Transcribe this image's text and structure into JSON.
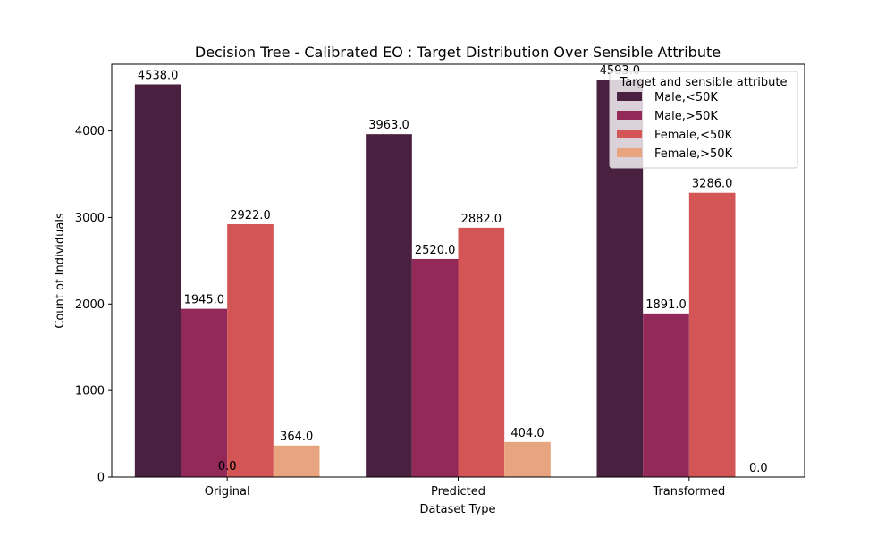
{
  "chart_data": {
    "type": "bar",
    "title": "Decision Tree - Calibrated EO : Target Distribution Over Sensible Attribute",
    "xlabel": "Dataset Type",
    "ylabel": "Count of Individuals",
    "categories": [
      "Original",
      "Predicted",
      "Transformed"
    ],
    "ylim": [
      0,
      4770
    ],
    "yticks": [
      0,
      1000,
      2000,
      3000,
      4000
    ],
    "grid": false,
    "legend": {
      "title": "Target and sensible attribute",
      "placement": "top-right"
    },
    "series": [
      {
        "name": "Male,<50K",
        "color": "#4a2040",
        "values": [
          4538.0,
          3963.0,
          4593.0
        ],
        "labels": [
          "4538.0",
          "3963.0",
          "4593.0"
        ]
      },
      {
        "name": "Male,>50K",
        "color": "#922958",
        "values": [
          1945.0,
          2520.0,
          1891.0
        ],
        "labels": [
          "1945.0",
          "2520.0",
          "1891.0"
        ]
      },
      {
        "name": "Female,<50K",
        "color": "#d35556",
        "values": [
          2922.0,
          2882.0,
          3286.0
        ],
        "labels": [
          "2922.0",
          "2882.0",
          "3286.0"
        ]
      },
      {
        "name": "Female,>50K",
        "color": "#e8a47f",
        "values": [
          364.0,
          404.0,
          0.0
        ],
        "labels": [
          "364.0",
          "404.0",
          "0.0"
        ]
      }
    ],
    "annotations": [
      {
        "category": "Original",
        "text": "0.0"
      },
      {
        "category": "Original",
        "text": "0.0"
      }
    ]
  }
}
